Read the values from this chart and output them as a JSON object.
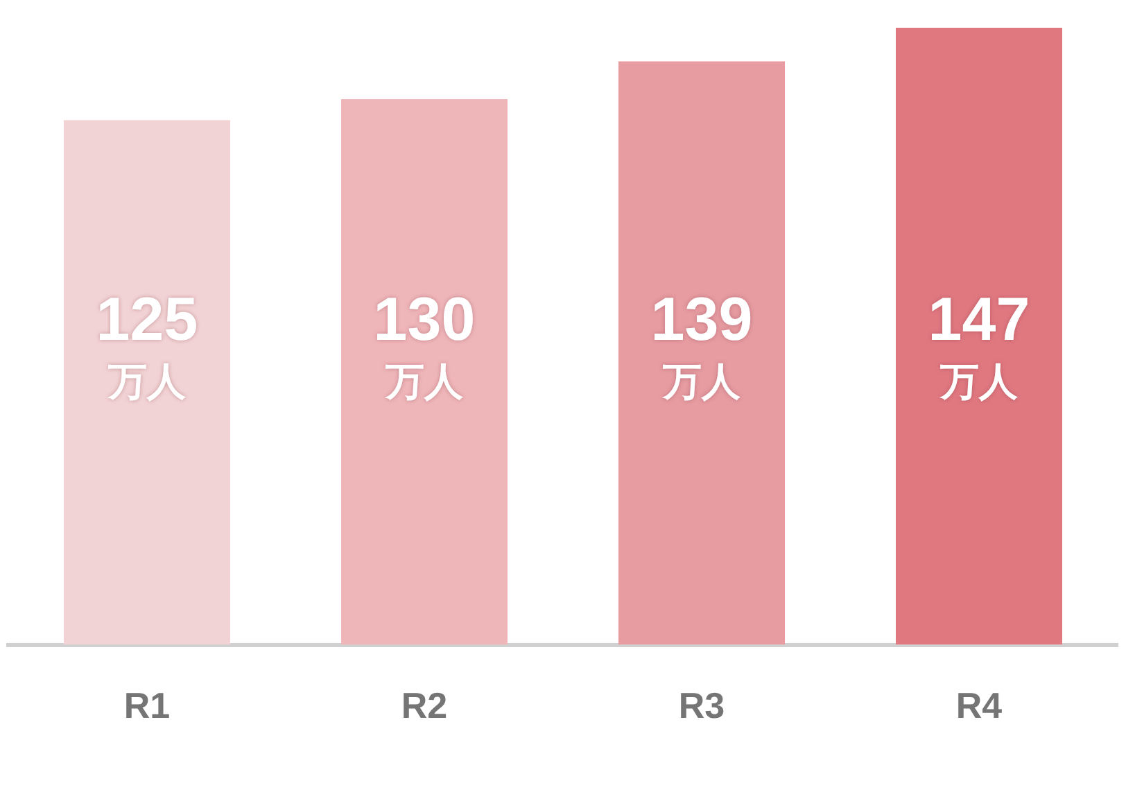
{
  "chart_data": {
    "type": "bar",
    "categories": [
      "R1",
      "R2",
      "R3",
      "R4"
    ],
    "values": [
      125,
      130,
      139,
      147
    ],
    "colors": [
      "#f2d3d5",
      "#efb6ba",
      "#e79ca2",
      "#e07880"
    ],
    "value_labels": [
      "125 万人",
      "130 万人",
      "139 万人",
      "147 万人"
    ],
    "grid": false,
    "legend": false,
    "tick_labels": "x"
  }
}
